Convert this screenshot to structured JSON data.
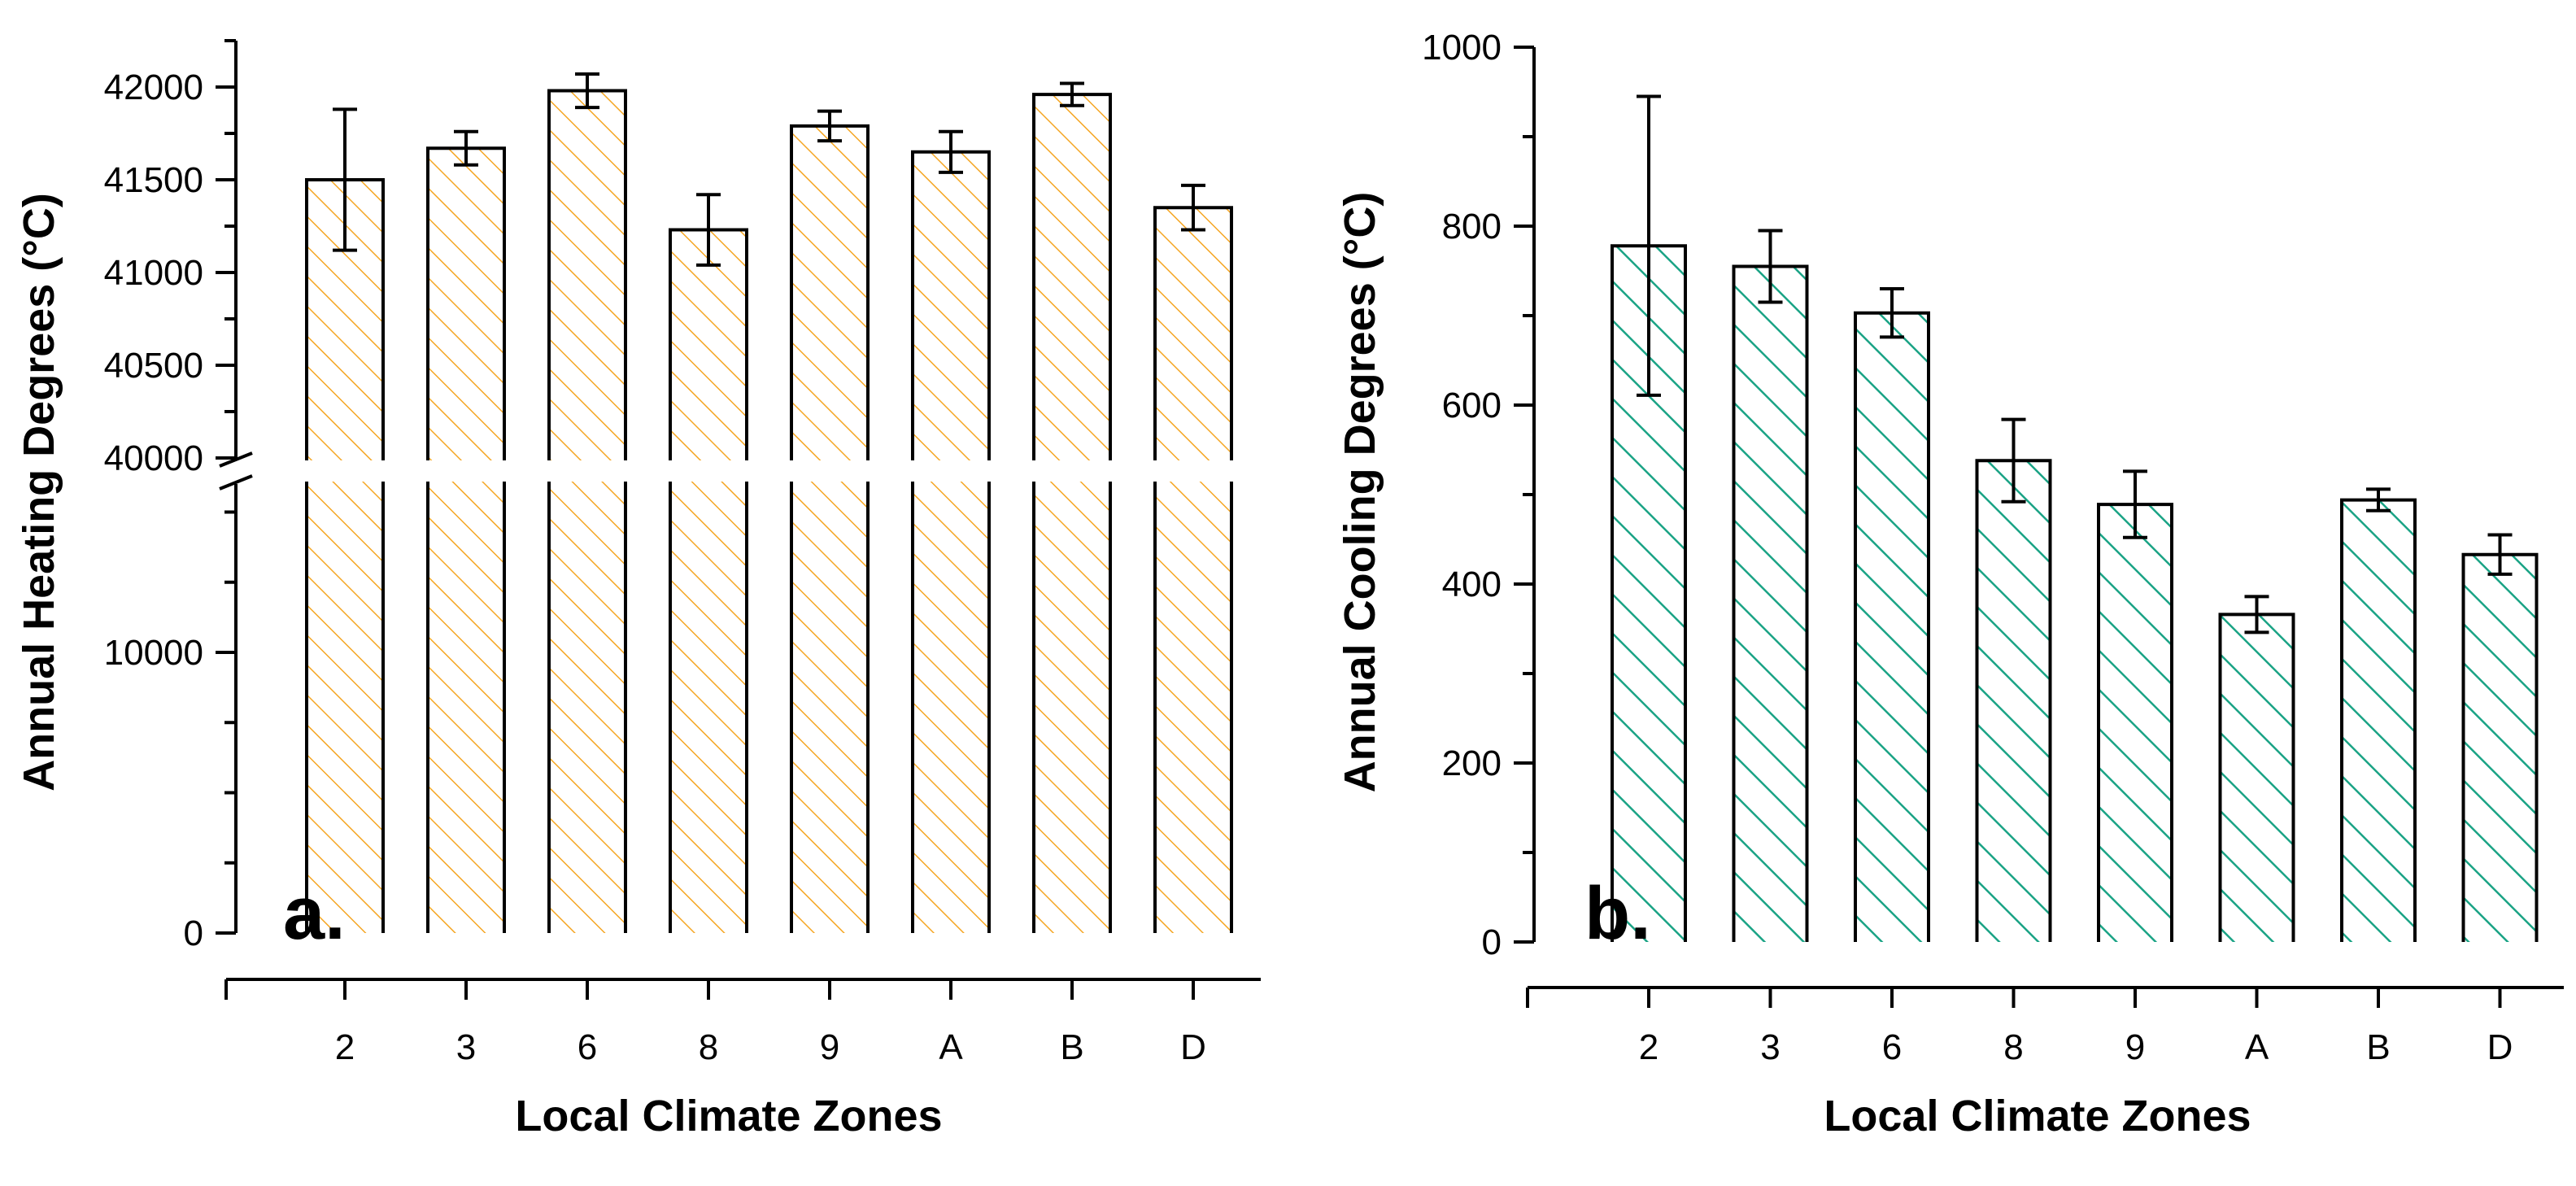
{
  "chart_data": [
    {
      "type": "bar",
      "panel_label": "a.",
      "categories": [
        "2",
        "3",
        "6",
        "8",
        "9",
        "A",
        "B",
        "D"
      ],
      "values": [
        41500,
        41670,
        41980,
        41230,
        41790,
        41650,
        41960,
        41350
      ],
      "error": [
        380,
        90,
        90,
        190,
        80,
        110,
        60,
        120
      ],
      "xlabel": "Local Climate Zones",
      "ylabel": "Annual Heating Degrees (°C)",
      "y_axis_break": [
        16000,
        40000
      ],
      "ylim_lower": [
        0,
        16000
      ],
      "ylim_upper": [
        40000,
        42250
      ],
      "yticks_lower": [
        0,
        10000
      ],
      "yticks_upper": [
        40000,
        40500,
        41000,
        41500,
        42000
      ],
      "fill": "hatched",
      "color": "#f5a623"
    },
    {
      "type": "bar",
      "panel_label": "b.",
      "categories": [
        "2",
        "3",
        "6",
        "8",
        "9",
        "A",
        "B",
        "D"
      ],
      "values": [
        778,
        755,
        703,
        538,
        489,
        366,
        494,
        433
      ],
      "error": [
        167,
        40,
        27,
        46,
        37,
        20,
        12,
        22
      ],
      "xlabel": "Local Climate Zones",
      "ylabel": "Annual Cooling Degrees (°C)",
      "ylim": [
        0,
        1000
      ],
      "yticks": [
        0,
        200,
        400,
        600,
        800,
        1000
      ],
      "fill": "hatched",
      "color": "#1aa385"
    }
  ]
}
